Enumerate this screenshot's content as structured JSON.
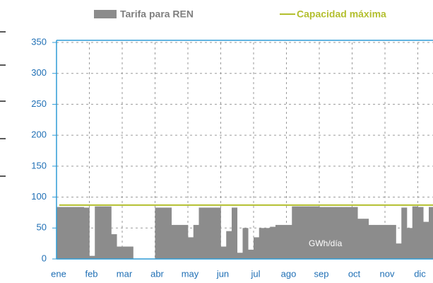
{
  "chart_data": {
    "type": "area",
    "annotation": "GWh/día",
    "categories": [
      "ene",
      null,
      null,
      null,
      null,
      null,
      "feb",
      null,
      null,
      null,
      null,
      null,
      "mar",
      null,
      null,
      null,
      null,
      null,
      "abr",
      null,
      null,
      null,
      null,
      null,
      "may",
      null,
      null,
      null,
      null,
      null,
      "jun",
      null,
      null,
      null,
      null,
      null,
      "jul",
      null,
      null,
      null,
      null,
      null,
      "ago",
      null,
      null,
      null,
      null,
      null,
      "sep",
      null,
      null,
      null,
      null,
      null,
      "oct",
      null,
      null,
      null,
      null,
      null,
      "nov",
      null,
      null,
      null,
      null,
      null,
      "dic",
      null,
      null,
      null
    ],
    "series": [
      {
        "name": "Tarifa para REN",
        "color": "#8c8c8c",
        "kind": "area",
        "values": [
          84,
          84,
          84,
          84,
          84,
          83,
          5,
          85,
          85,
          85,
          40,
          20,
          20,
          20,
          0,
          0,
          0,
          0,
          83,
          83,
          83,
          55,
          55,
          55,
          35,
          55,
          83,
          83,
          83,
          83,
          20,
          45,
          83,
          10,
          50,
          15,
          35,
          50,
          50,
          52,
          55,
          55,
          55,
          85,
          85,
          85,
          85,
          85,
          84,
          84,
          84,
          84,
          84,
          84,
          84,
          65,
          65,
          55,
          55,
          55,
          55,
          55,
          25,
          83,
          50,
          85,
          84,
          60,
          84,
          84
        ]
      },
      {
        "name": "Capacidad máxima",
        "color": "#b3bf2e",
        "kind": "line",
        "values": [
          87,
          87,
          87,
          87,
          87,
          87,
          87,
          87,
          87,
          87,
          87,
          87,
          87,
          87,
          87,
          87,
          87,
          87,
          87,
          87,
          87,
          87,
          87,
          87,
          87,
          87,
          87,
          87,
          87,
          87,
          87,
          87,
          87,
          87,
          87,
          87,
          87,
          87,
          87,
          87,
          87,
          87,
          87,
          87,
          87,
          87,
          87,
          87,
          87,
          87,
          87,
          87,
          87,
          87,
          87,
          87,
          87,
          87,
          87,
          87,
          87,
          87,
          87,
          87,
          87,
          87,
          87,
          87,
          87,
          87
        ]
      }
    ],
    "ylim": [
      0,
      350
    ],
    "yticks": [
      0,
      50,
      100,
      150,
      200,
      250,
      300,
      350
    ],
    "grid": true
  }
}
